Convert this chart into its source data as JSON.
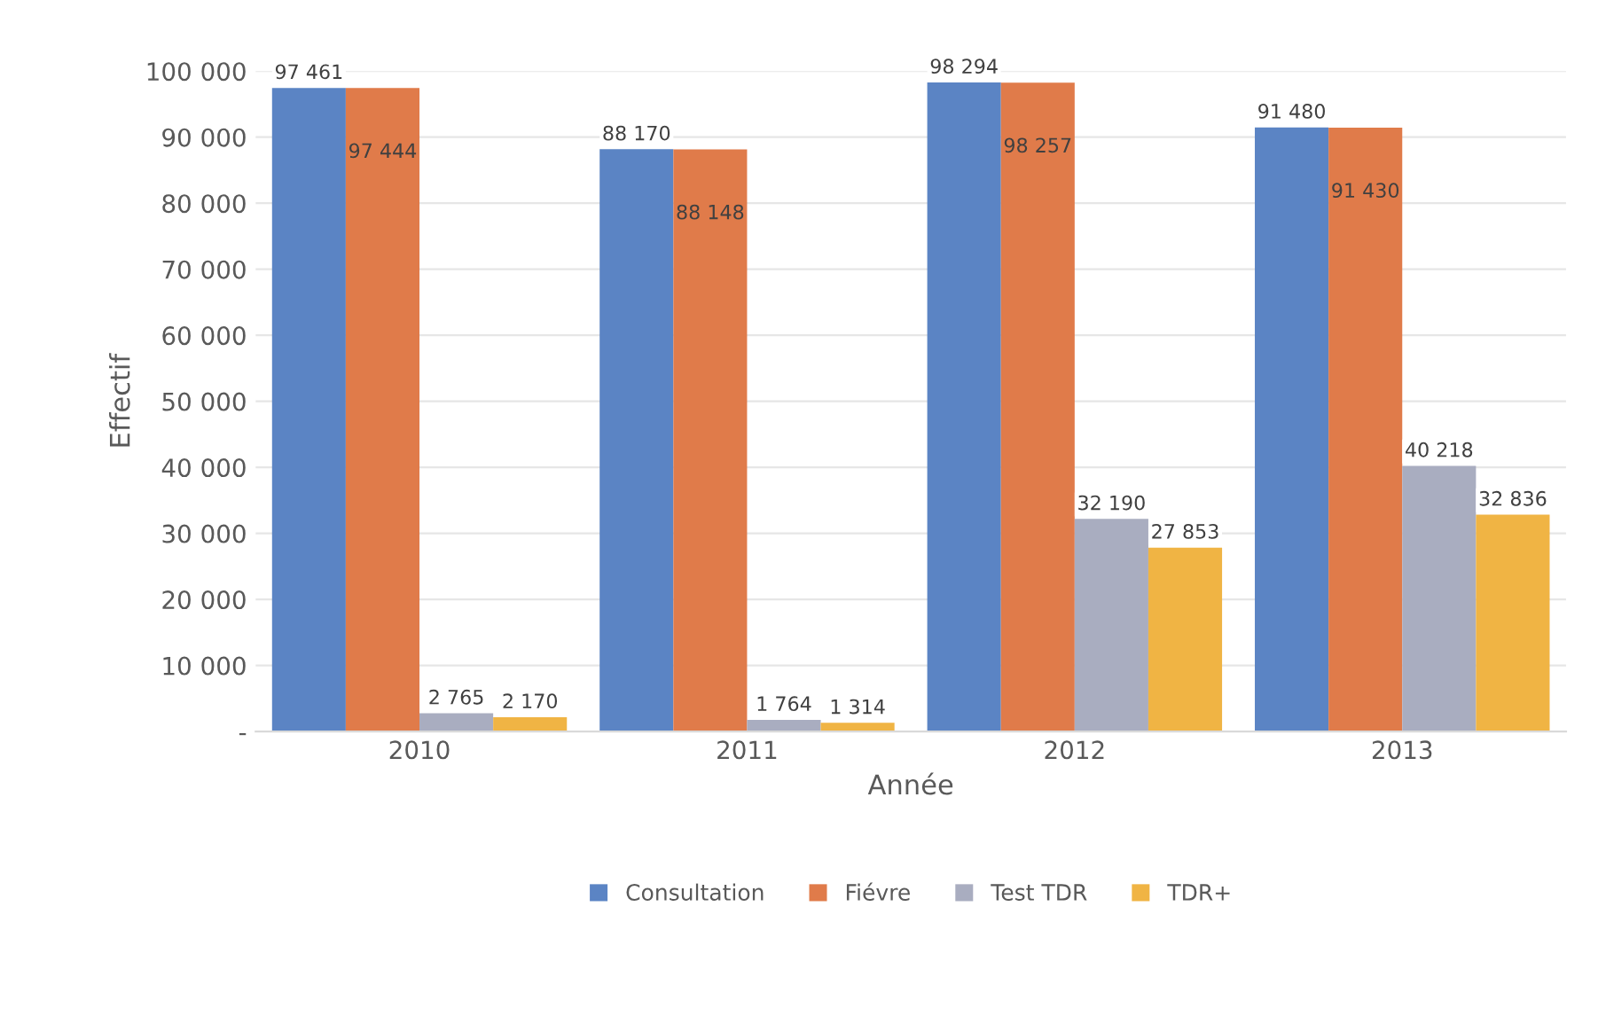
{
  "chart_data": {
    "type": "bar",
    "xlabel": "Année",
    "ylabel": "Effectif",
    "categories": [
      "2010",
      "2011",
      "2012",
      "2013"
    ],
    "series": [
      {
        "name": "Consultation",
        "color": "#5b84c4",
        "values": [
          97461,
          88170,
          98294,
          91480
        ],
        "value_labels": [
          "97 461",
          "88 170",
          "98 294",
          "91 480"
        ]
      },
      {
        "name": "Fiévre",
        "color": "#e07b4a",
        "values": [
          97444,
          88148,
          98257,
          91430
        ],
        "value_labels": [
          "97 444",
          "88 148",
          "98 257",
          "91 430"
        ]
      },
      {
        "name": "Test TDR",
        "color": "#a9adc0",
        "values": [
          2765,
          1764,
          32190,
          40218
        ],
        "value_labels": [
          "2 765",
          "1 764",
          "32 190",
          "40 218"
        ]
      },
      {
        "name": "TDR+",
        "color": "#f0b444",
        "values": [
          2170,
          1314,
          27853,
          32836
        ],
        "value_labels": [
          "2 170",
          "1 314",
          "27 853",
          "32 836"
        ]
      }
    ],
    "ylim": [
      0,
      100000
    ],
    "yticks": [
      {
        "value": 0,
        "label": "-"
      },
      {
        "value": 10000,
        "label": "10 000"
      },
      {
        "value": 20000,
        "label": "20 000"
      },
      {
        "value": 30000,
        "label": "30 000"
      },
      {
        "value": 40000,
        "label": "40 000"
      },
      {
        "value": 50000,
        "label": "50 000"
      },
      {
        "value": 60000,
        "label": "60 000"
      },
      {
        "value": 70000,
        "label": "70 000"
      },
      {
        "value": 80000,
        "label": "80 000"
      },
      {
        "value": 90000,
        "label": "90 000"
      },
      {
        "value": 100000,
        "label": "100 000"
      }
    ],
    "grid": "y",
    "legend": "bottom"
  }
}
